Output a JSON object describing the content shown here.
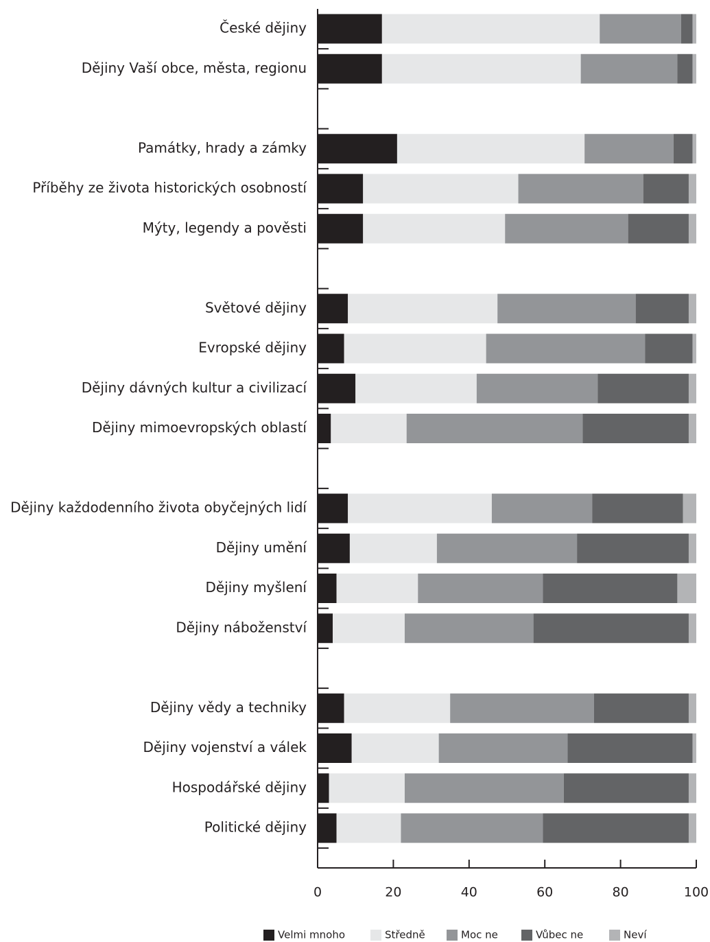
{
  "chart_data": {
    "type": "stacked_bar_horizontal",
    "categories": [
      "České dějiny",
      "Dějiny Vaší obce, města, regionu",
      null,
      "Památky, hrady a zámky",
      "Příběhy ze života historických osobností",
      "Mýty, legendy a pověsti",
      null,
      "Světové dějiny",
      "Evropské dějiny",
      "Dějiny dávných kultur a civilizací",
      "Dějiny mimoevropských oblastí",
      null,
      "Dějiny každodenního života obyčejných lidí",
      "Dějiny umění",
      "Dějiny myšlení",
      "Dějiny náboženství",
      null,
      "Dějiny vědy a techniky",
      "Dějiny vojenství a válek",
      "Hospodářské dějiny",
      "Politické dějiny"
    ],
    "series": [
      {
        "name": "Velmi mnoho",
        "color": "#231f20",
        "values": [
          17,
          17,
          null,
          21,
          12,
          12,
          null,
          8,
          7,
          10,
          3.5,
          null,
          8,
          8.5,
          5,
          4,
          null,
          7,
          9,
          3,
          5
        ]
      },
      {
        "name": "Středně",
        "color": "#e6e7e8",
        "values": [
          57.5,
          52.5,
          null,
          49.5,
          41,
          37.5,
          null,
          39.5,
          37.5,
          32,
          20,
          null,
          38,
          23,
          21.5,
          19,
          null,
          28,
          23,
          20,
          17
        ]
      },
      {
        "name": "Moc ne",
        "color": "#939598",
        "values": [
          21.5,
          25.5,
          null,
          23.5,
          33,
          32.5,
          null,
          36.5,
          42,
          32,
          46.5,
          null,
          26.5,
          37,
          33,
          34,
          null,
          38,
          34,
          42,
          37.5
        ]
      },
      {
        "name": "Vůbec ne",
        "color": "#636466",
        "values": [
          3,
          4,
          null,
          5,
          12,
          16,
          null,
          14,
          12.5,
          24,
          28,
          null,
          24,
          29.5,
          35.5,
          41,
          null,
          25,
          33,
          33,
          38.5
        ]
      },
      {
        "name": "Neví",
        "color": "#b3b4b6",
        "values": [
          1,
          1,
          null,
          1,
          2,
          2,
          null,
          2,
          1,
          2,
          2,
          null,
          3.5,
          2,
          5,
          2,
          null,
          2,
          1,
          2,
          2
        ]
      }
    ],
    "xlim": [
      0,
      100
    ],
    "xticks": [
      0,
      20,
      40,
      60,
      80,
      100
    ],
    "legend": "bottom"
  }
}
